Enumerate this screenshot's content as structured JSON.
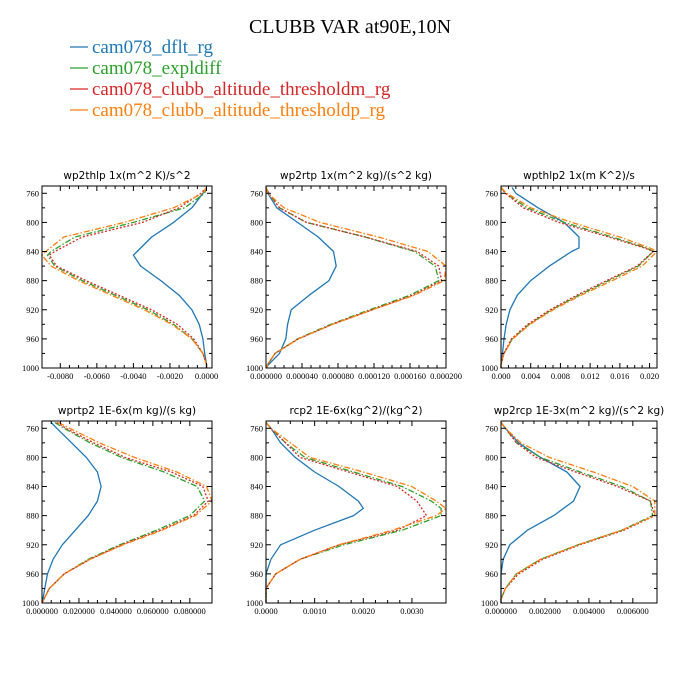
{
  "figure": {
    "title": "CLUBB VAR at90E,10N",
    "legend": [
      {
        "label": "cam078_dflt_rg",
        "color": "#1f77b4",
        "dash": "solid"
      },
      {
        "label": "cam078_expldiff",
        "color": "#2ca02c",
        "dash": "dashdot"
      },
      {
        "label": "cam078_clubb_altitude_thresholdm_rg",
        "color": "#d62728",
        "dash": "dotted"
      },
      {
        "label": "cam078_clubb_altitude_thresholdp_rg",
        "color": "#ff7f0e",
        "dash": "dashdot"
      }
    ]
  },
  "chart_data": [
    {
      "type": "line",
      "title": "wp2thlp   1x(m^2 K)/s^2",
      "xlim": [
        -0.009,
        0.0003
      ],
      "ylim": [
        1000,
        750
      ],
      "xticks": [
        -0.008,
        -0.006,
        -0.004,
        -0.002,
        0.0
      ],
      "xtick_labels": [
        "-0.0080",
        "-0.0060",
        "-0.0040",
        "-0.0020",
        "0.0000"
      ],
      "yticks": [
        760,
        800,
        840,
        880,
        920,
        960,
        1000
      ],
      "y": [
        752,
        760,
        780,
        800,
        820,
        840,
        845,
        860,
        880,
        900,
        920,
        940,
        960,
        980,
        995,
        1000
      ],
      "series": [
        {
          "values": [
            0.0,
            -0.0002,
            -0.0008,
            -0.0018,
            -0.003,
            -0.0038,
            -0.004,
            -0.0036,
            -0.0025,
            -0.0015,
            -0.0008,
            -0.0004,
            -0.0002,
            -0.0001,
            0.0,
            0.0
          ]
        },
        {
          "values": [
            0.0,
            -0.0001,
            -0.0012,
            -0.004,
            -0.0072,
            -0.0085,
            -0.0087,
            -0.0083,
            -0.0068,
            -0.005,
            -0.0032,
            -0.0018,
            -0.0008,
            -0.0002,
            0.0,
            0.0
          ]
        },
        {
          "values": [
            0.0,
            -0.0003,
            -0.0015,
            -0.0035,
            -0.0068,
            -0.0083,
            -0.0086,
            -0.0082,
            -0.0066,
            -0.0048,
            -0.003,
            -0.0016,
            -0.0007,
            -0.0002,
            0.0,
            0.0
          ]
        },
        {
          "values": [
            0.0,
            -0.0002,
            -0.0018,
            -0.0045,
            -0.0078,
            -0.0088,
            -0.009,
            -0.0085,
            -0.007,
            -0.0052,
            -0.0034,
            -0.0019,
            -0.0008,
            -0.0002,
            0.0,
            0.0
          ]
        }
      ]
    },
    {
      "type": "line",
      "title": "wp2rtp   1x(m^2 kg)/(s^2 kg)",
      "xlim": [
        0.0,
        0.0002
      ],
      "ylim": [
        1000,
        750
      ],
      "xticks": [
        0.0,
        4e-05,
        8e-05,
        0.00012,
        0.00016,
        0.0002
      ],
      "xtick_labels": [
        "0.000000",
        "0.000040",
        "0.000080",
        "0.000120",
        "0.000160",
        "0.000200"
      ],
      "yticks": [
        760,
        800,
        840,
        880,
        920,
        960,
        1000
      ],
      "y": [
        752,
        760,
        780,
        800,
        820,
        840,
        860,
        880,
        900,
        920,
        940,
        960,
        980,
        995,
        1000
      ],
      "series": [
        {
          "values": [
            0.0,
            2e-06,
            1.2e-05,
            3.5e-05,
            5.8e-05,
            7.5e-05,
            7.8e-05,
            7e-05,
            4.8e-05,
            2.8e-05,
            2.4e-05,
            2.2e-05,
            1.5e-05,
            3e-06,
            0.0
          ]
        },
        {
          "values": [
            0.0,
            3e-06,
            1.5e-05,
            4.5e-05,
            0.00011,
            0.000165,
            0.000188,
            0.000192,
            0.00016,
            0.000115,
            7.2e-05,
            3.5e-05,
            1e-05,
            2e-06,
            0.0
          ]
        },
        {
          "values": [
            0.0,
            3e-06,
            1.5e-05,
            4.5e-05,
            0.00011,
            0.000168,
            0.000192,
            0.000195,
            0.000163,
            0.000118,
            7.4e-05,
            3.6e-05,
            1e-05,
            2e-06,
            0.0
          ]
        },
        {
          "values": [
            0.0,
            2e-06,
            2e-05,
            6e-05,
            0.000125,
            0.00018,
            0.0002,
            0.000198,
            0.000165,
            0.000118,
            7.4e-05,
            3.6e-05,
            1e-05,
            2e-06,
            0.0
          ]
        }
      ]
    },
    {
      "type": "line",
      "title": "wpthlp2   1x(m K^2)/s",
      "xlim": [
        0.0,
        0.021
      ],
      "ylim": [
        1000,
        750
      ],
      "xticks": [
        0.0,
        0.004,
        0.008,
        0.012,
        0.016,
        0.02
      ],
      "xtick_labels": [
        "0.000",
        "0.004",
        "0.008",
        "0.012",
        "0.016",
        "0.020"
      ],
      "yticks": [
        760,
        800,
        840,
        880,
        920,
        960,
        1000
      ],
      "y": [
        752,
        760,
        780,
        800,
        820,
        835,
        840,
        860,
        880,
        900,
        920,
        940,
        960,
        980,
        995,
        1000
      ],
      "series": [
        {
          "values": [
            0.0015,
            0.002,
            0.005,
            0.0085,
            0.0105,
            0.0105,
            0.0095,
            0.0065,
            0.004,
            0.0022,
            0.0012,
            0.0007,
            0.0004,
            0.0002,
            0.0,
            0.0
          ]
        },
        {
          "values": [
            0.0,
            0.0006,
            0.0035,
            0.0085,
            0.015,
            0.0195,
            0.0205,
            0.0185,
            0.0145,
            0.0105,
            0.0068,
            0.0038,
            0.0015,
            0.0004,
            0.0,
            0.0
          ]
        },
        {
          "values": [
            0.0,
            0.0006,
            0.003,
            0.0078,
            0.0145,
            0.0193,
            0.0205,
            0.0183,
            0.0142,
            0.0102,
            0.0066,
            0.0036,
            0.0014,
            0.0004,
            0.0,
            0.0
          ]
        },
        {
          "values": [
            0.0,
            0.0008,
            0.004,
            0.0095,
            0.016,
            0.02,
            0.021,
            0.019,
            0.015,
            0.0108,
            0.007,
            0.0039,
            0.0016,
            0.0004,
            0.0,
            0.0
          ]
        }
      ]
    },
    {
      "type": "line",
      "title": "wprtp2   1E-6x(m kg)/(s kg)",
      "xlim": [
        0.0,
        0.092
      ],
      "ylim": [
        1000,
        750
      ],
      "xticks": [
        0.0,
        0.02,
        0.04,
        0.06,
        0.08
      ],
      "xtick_labels": [
        "0.000000",
        "0.020000",
        "0.040000",
        "0.060000",
        "0.080000"
      ],
      "yticks": [
        760,
        800,
        840,
        880,
        920,
        960,
        1000
      ],
      "y": [
        752,
        760,
        780,
        800,
        820,
        840,
        860,
        880,
        900,
        920,
        940,
        960,
        980,
        995,
        1000
      ],
      "series": [
        {
          "values": [
            0.005,
            0.008,
            0.016,
            0.024,
            0.03,
            0.032,
            0.03,
            0.025,
            0.018,
            0.011,
            0.006,
            0.003,
            0.0015,
            0.0005,
            0.0
          ]
        },
        {
          "values": [
            0.007,
            0.012,
            0.026,
            0.043,
            0.066,
            0.084,
            0.088,
            0.08,
            0.062,
            0.042,
            0.025,
            0.012,
            0.004,
            0.001,
            0.0
          ]
        },
        {
          "values": [
            0.008,
            0.013,
            0.028,
            0.045,
            0.07,
            0.087,
            0.09,
            0.082,
            0.064,
            0.043,
            0.026,
            0.012,
            0.004,
            0.001,
            0.0
          ]
        },
        {
          "values": [
            0.009,
            0.015,
            0.031,
            0.05,
            0.073,
            0.089,
            0.092,
            0.083,
            0.065,
            0.044,
            0.026,
            0.012,
            0.004,
            0.001,
            0.0
          ]
        }
      ]
    },
    {
      "type": "line",
      "title": "rcp2   1E-6x(kg^2)/(kg^2)",
      "xlim": [
        0.0,
        0.0037
      ],
      "ylim": [
        1000,
        750
      ],
      "xticks": [
        0.0,
        0.001,
        0.002,
        0.003
      ],
      "xtick_labels": [
        "0.0000",
        "0.0010",
        "0.0020",
        "0.0030"
      ],
      "yticks": [
        760,
        800,
        840,
        880,
        920,
        960,
        1000
      ],
      "y": [
        752,
        760,
        780,
        800,
        820,
        840,
        860,
        870,
        880,
        900,
        920,
        940,
        960,
        980,
        995,
        1000
      ],
      "series": [
        {
          "values": [
            0.0,
            0.0001,
            0.0003,
            0.0006,
            0.001,
            0.0015,
            0.0019,
            0.002,
            0.0018,
            0.001,
            0.0003,
            0.0001,
            0.0,
            0.0,
            0.0,
            0.0
          ]
        },
        {
          "values": [
            0.0,
            0.0001,
            0.0004,
            0.0008,
            0.0018,
            0.0028,
            0.0034,
            0.0036,
            0.0036,
            0.0028,
            0.0016,
            0.0007,
            0.0002,
            0.0,
            0.0,
            0.0
          ]
        },
        {
          "values": [
            0.0,
            0.0001,
            0.0004,
            0.0007,
            0.0017,
            0.0027,
            0.0031,
            0.0032,
            0.0033,
            0.0027,
            0.0015,
            0.0007,
            0.0002,
            0.0,
            0.0,
            0.0
          ]
        },
        {
          "values": [
            0.0,
            0.0001,
            0.0005,
            0.0009,
            0.002,
            0.003,
            0.0035,
            0.0037,
            0.0035,
            0.0026,
            0.0015,
            0.0007,
            0.0002,
            0.0,
            0.0,
            0.0
          ]
        }
      ]
    },
    {
      "type": "line",
      "title": "wp2rcp   1E-3x(m^2 kg)/(s^2 kg)",
      "xlim": [
        0.0,
        0.0071
      ],
      "ylim": [
        1000,
        750
      ],
      "xticks": [
        0.0,
        0.002,
        0.004,
        0.006
      ],
      "xtick_labels": [
        "0.000000",
        "0.002000",
        "0.004000",
        "0.006000"
      ],
      "yticks": [
        760,
        800,
        840,
        880,
        920,
        960,
        1000
      ],
      "y": [
        752,
        760,
        780,
        800,
        820,
        840,
        860,
        880,
        900,
        920,
        940,
        960,
        980,
        995,
        1000
      ],
      "series": [
        {
          "values": [
            0.0,
            0.0002,
            0.0008,
            0.0018,
            0.003,
            0.0036,
            0.0033,
            0.0024,
            0.0012,
            0.0004,
            0.0001,
            0.0,
            0.0,
            0.0,
            0.0
          ]
        },
        {
          "values": [
            0.0,
            0.0002,
            0.0007,
            0.0018,
            0.0036,
            0.0055,
            0.0068,
            0.0069,
            0.0055,
            0.0035,
            0.0018,
            0.0007,
            0.0002,
            0.0,
            0.0
          ]
        },
        {
          "values": [
            0.0,
            0.0002,
            0.0007,
            0.0016,
            0.0034,
            0.0053,
            0.0068,
            0.007,
            0.0056,
            0.0036,
            0.0019,
            0.0008,
            0.0002,
            0.0,
            0.0
          ]
        },
        {
          "values": [
            0.0,
            0.0002,
            0.0009,
            0.0022,
            0.0042,
            0.006,
            0.007,
            0.007,
            0.0055,
            0.0035,
            0.0018,
            0.0007,
            0.0002,
            0.0,
            0.0
          ]
        }
      ]
    }
  ]
}
